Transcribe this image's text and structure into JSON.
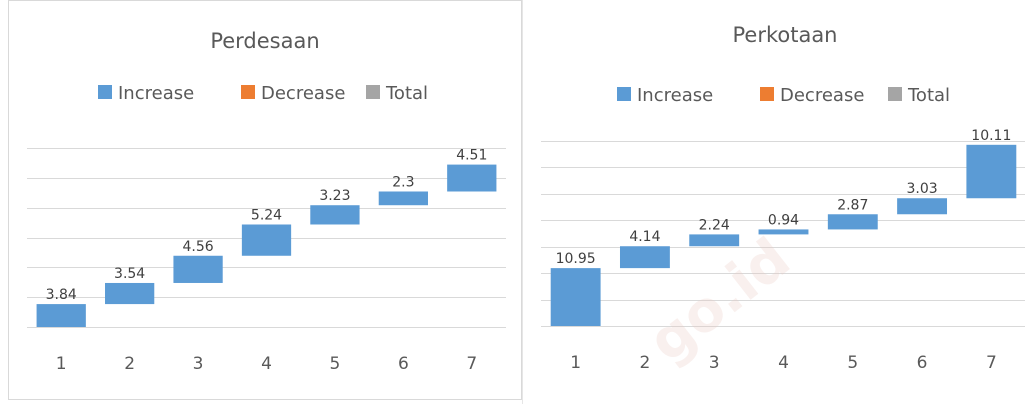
{
  "colors": {
    "increase": "#5b9bd5",
    "decrease": "#ed7d31",
    "total": "#a5a5a5"
  },
  "watermark": "go.id",
  "chart_data": [
    {
      "type": "bar",
      "subtype": "waterfall",
      "title": "Perdesaan",
      "legend": [
        "Increase",
        "Decrease",
        "Total"
      ],
      "legend_position": "top",
      "categories": [
        "1",
        "2",
        "3",
        "4",
        "5",
        "6",
        "7"
      ],
      "values": [
        3.84,
        3.54,
        4.56,
        5.24,
        3.23,
        2.3,
        4.51
      ],
      "data_labels": [
        "3.84",
        "3.54",
        "4.56",
        "5.24",
        "3.23",
        "2.3",
        "4.51"
      ],
      "grid": true
    },
    {
      "type": "bar",
      "subtype": "waterfall",
      "title": "Perkotaan",
      "legend": [
        "Increase",
        "Decrease",
        "Total"
      ],
      "legend_position": "top",
      "categories": [
        "1",
        "2",
        "3",
        "4",
        "5",
        "6",
        "7"
      ],
      "values": [
        10.95,
        4.14,
        2.24,
        0.94,
        2.87,
        3.03,
        10.11
      ],
      "data_labels": [
        "10.95",
        "4.14",
        "2.24",
        "0.94",
        "2.87",
        "3.03",
        "10.11"
      ],
      "grid": true
    }
  ]
}
